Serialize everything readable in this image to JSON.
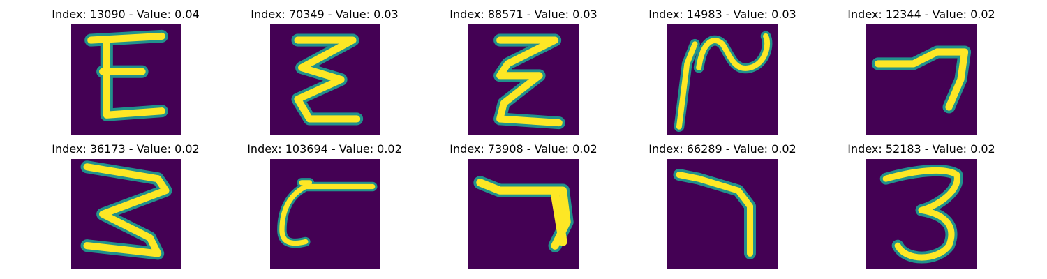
{
  "colors": {
    "background": "#440154",
    "stroke_core": "#fde725",
    "stroke_edge": "#21918c"
  },
  "panels": [
    {
      "title": "Index: 13090 - Value: 0.04",
      "glyph": "E"
    },
    {
      "title": "Index: 70349 - Value: 0.03",
      "glyph": "E (zig-zag)"
    },
    {
      "title": "Index: 88571 - Value: 0.03",
      "glyph": "E (zig-zag)"
    },
    {
      "title": "Index: 14983 - Value: 0.03",
      "glyph": "loop-stroke"
    },
    {
      "title": "Index: 12344 - Value: 0.02",
      "glyph": "7"
    },
    {
      "title": "Index: 36173 - Value: 0.02",
      "glyph": "3 (zig-zag)"
    },
    {
      "title": "Index: 103694 - Value: 0.02",
      "glyph": "hook-stroke"
    },
    {
      "title": "Index: 73908 - Value: 0.02",
      "glyph": "7"
    },
    {
      "title": "Index: 66289 - Value: 0.02",
      "glyph": "7"
    },
    {
      "title": "Index: 52183 - Value: 0.02",
      "glyph": "3"
    }
  ]
}
